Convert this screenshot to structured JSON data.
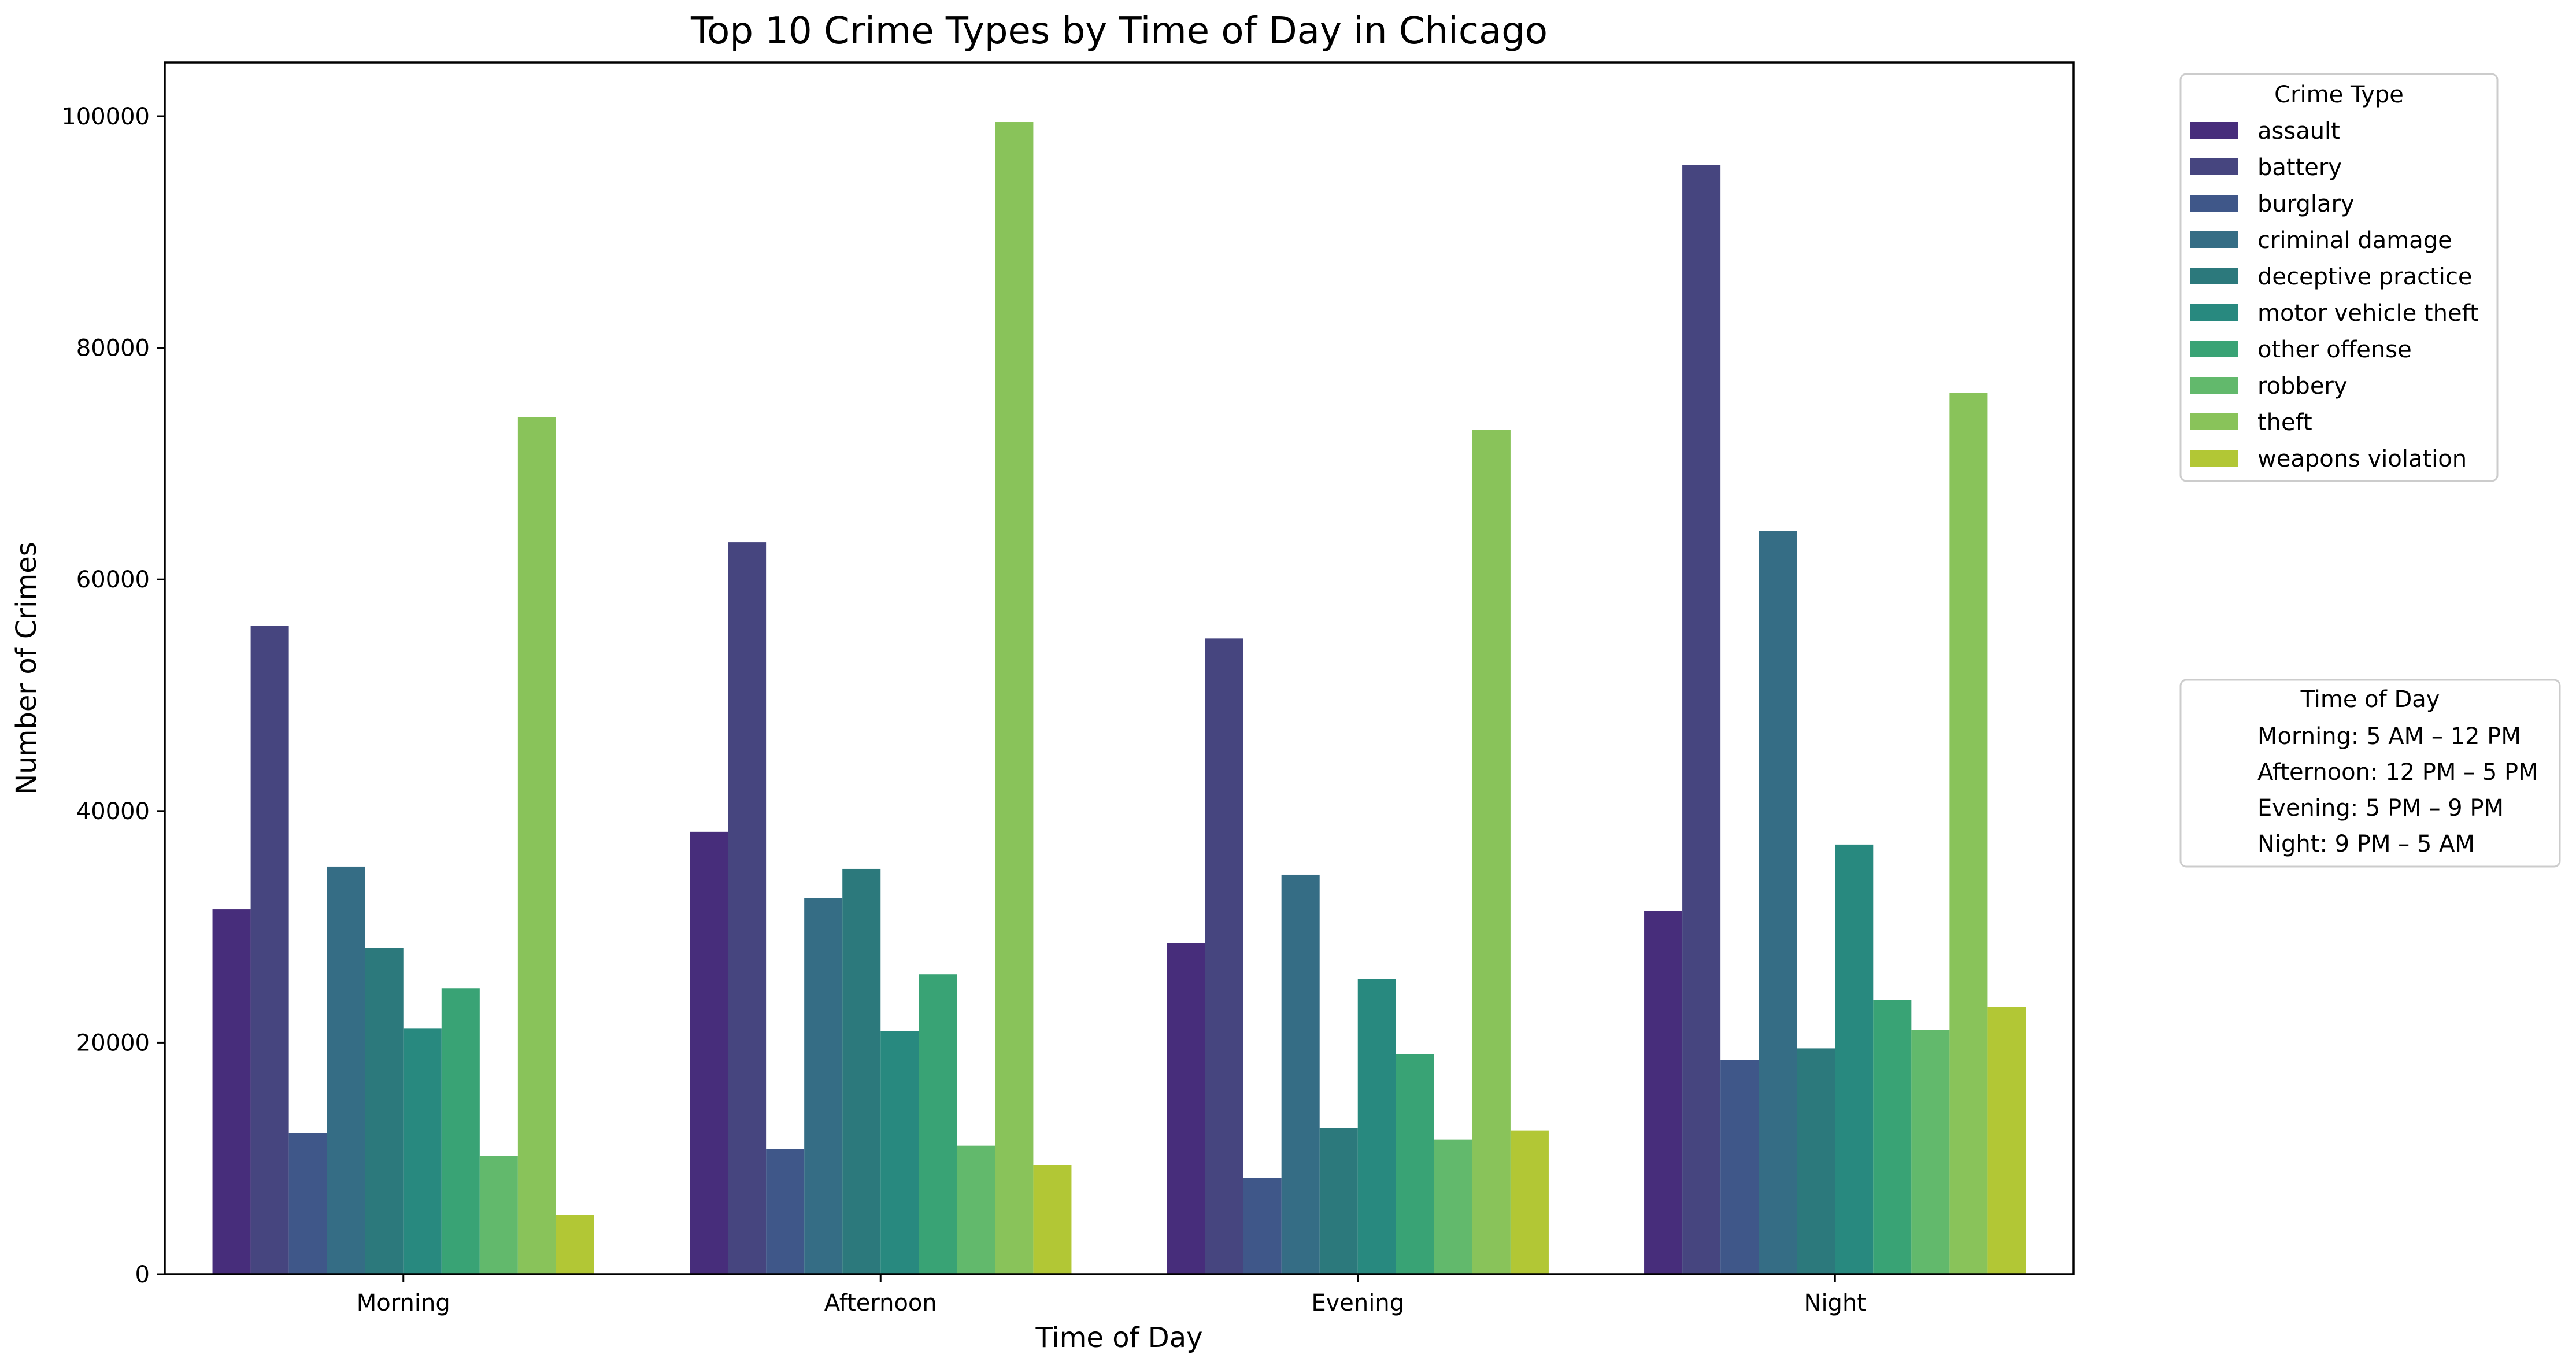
{
  "chart_data": {
    "type": "bar",
    "title": "Top 10 Crime Types by Time of Day in Chicago",
    "xlabel": "Time of Day",
    "ylabel": "Number of Crimes",
    "ylim": [
      0,
      105000
    ],
    "yticks": [
      0,
      20000,
      40000,
      60000,
      80000,
      100000
    ],
    "grid": false,
    "categories": [
      "Morning",
      "Afternoon",
      "Evening",
      "Night"
    ],
    "series": [
      {
        "name": "assault",
        "color": "#472d7b",
        "values": [
          31500,
          38200,
          28600,
          31400
        ]
      },
      {
        "name": "battery",
        "color": "#46457f",
        "values": [
          56000,
          63200,
          54900,
          95800
        ]
      },
      {
        "name": "burglary",
        "color": "#3f5789",
        "values": [
          12200,
          10800,
          8300,
          18500
        ]
      },
      {
        "name": "criminal damage",
        "color": "#356d85",
        "values": [
          35200,
          32500,
          34500,
          64200
        ]
      },
      {
        "name": "deceptive practice",
        "color": "#2c797c",
        "values": [
          28200,
          35000,
          12600,
          19500
        ]
      },
      {
        "name": "motor vehicle theft",
        "color": "#28897f",
        "values": [
          21200,
          21000,
          25500,
          37100
        ]
      },
      {
        "name": "other offense",
        "color": "#39a375",
        "values": [
          24700,
          25900,
          19000,
          23700
        ]
      },
      {
        "name": "robbery",
        "color": "#62b96c",
        "values": [
          10200,
          11100,
          11600,
          21100
        ]
      },
      {
        "name": "theft",
        "color": "#89c35a",
        "values": [
          74000,
          99500,
          72900,
          76100
        ]
      },
      {
        "name": "weapons violation",
        "color": "#b2c735",
        "values": [
          5100,
          9400,
          12400,
          23100
        ]
      }
    ],
    "legend": {
      "title": "Crime Type",
      "placement": "outside-right-top"
    },
    "note_box": {
      "title": "Time of Day",
      "lines": [
        "Morning: 5 AM – 12 PM",
        "Afternoon: 12 PM – 5 PM",
        "Evening: 5 PM – 9 PM",
        "Night: 9 PM – 5 AM"
      ],
      "placement": "outside-right-middle"
    }
  }
}
